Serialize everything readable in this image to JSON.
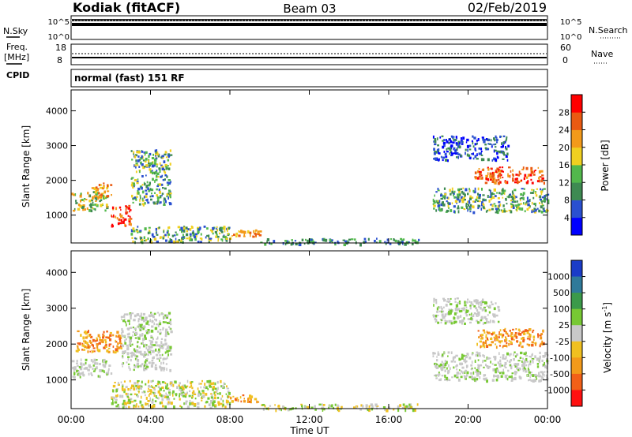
{
  "header": {
    "station": "Kodiak (fitACF)",
    "beam": "Beam 03",
    "date": "02/Feb/2019"
  },
  "noise_panel": {
    "left_label": "N.Sky",
    "right_label": "N.Search",
    "left_ticks": [
      "10^5",
      "10^0"
    ],
    "right_ticks": [
      "10^5",
      "10^0"
    ]
  },
  "freq_panel": {
    "left_label_1": "Freq.",
    "left_label_2": "[MHz]",
    "right_label": "Nave",
    "left_ticks": [
      "18",
      "8"
    ],
    "right_ticks": [
      "60",
      "0"
    ]
  },
  "cpid": {
    "label": "CPID",
    "value": "normal (fast) 151 RF"
  },
  "x_axis": {
    "label": "Time UT",
    "ticks": [
      "00:00",
      "04:00",
      "08:00",
      "12:00",
      "16:00",
      "20:00",
      "00:00"
    ]
  },
  "power_colorbar": {
    "label": "Power [dB]",
    "ticks": [
      "4",
      "8",
      "12",
      "16",
      "20",
      "24",
      "28"
    ],
    "colors": [
      "#0000ff",
      "#2a50d0",
      "#3e8a52",
      "#52b84c",
      "#f0d020",
      "#f39a1a",
      "#ea5a12",
      "#ff0000"
    ]
  },
  "velocity_colorbar": {
    "label": "Velocity [m s^-1]",
    "ticks": [
      "1000",
      "500",
      "100",
      "25",
      "-25",
      "-100",
      "-500",
      "-1000"
    ],
    "colors": [
      "#1a3cc8",
      "#2f7a9a",
      "#3b9a4a",
      "#77c833",
      "#c8c8c8",
      "#f0c020",
      "#f39a1a",
      "#f26018",
      "#ff1010"
    ]
  },
  "chart_data": [
    {
      "type": "heatmap",
      "name": "power",
      "ylabel": "Slant Range [km]",
      "xlabel": "Time UT",
      "xlim": [
        0,
        24
      ],
      "ylim": [
        200,
        4600
      ],
      "yticks": [
        "1000",
        "2000",
        "3000",
        "4000"
      ],
      "ytick_values": [
        1000,
        2000,
        3000,
        4000
      ],
      "features": [
        {
          "t0": 0.0,
          "t1": 1.8,
          "r0": 1150,
          "r1": 1700,
          "level": "green-yellow"
        },
        {
          "t0": 1.0,
          "t1": 2.0,
          "r0": 1500,
          "r1": 1950,
          "level": "orange"
        },
        {
          "t0": 2.0,
          "t1": 3.0,
          "r0": 700,
          "r1": 1300,
          "level": "red"
        },
        {
          "t0": 3.0,
          "t1": 5.0,
          "r0": 1300,
          "r1": 2900,
          "level": "green"
        },
        {
          "t0": 3.0,
          "t1": 8.0,
          "r0": 250,
          "r1": 700,
          "level": "green"
        },
        {
          "t0": 8.0,
          "t1": 9.5,
          "r0": 400,
          "r1": 600,
          "level": "orange"
        },
        {
          "t0": 9.5,
          "t1": 17.5,
          "r0": 180,
          "r1": 350,
          "level": "blue-green"
        },
        {
          "t0": 18.2,
          "t1": 24.0,
          "r0": 1100,
          "r1": 1800,
          "level": "green"
        },
        {
          "t0": 20.3,
          "t1": 23.8,
          "r0": 1950,
          "r1": 2400,
          "level": "orange-red"
        },
        {
          "t0": 18.2,
          "t1": 22.0,
          "r0": 2600,
          "r1": 3300,
          "level": "blue"
        }
      ]
    },
    {
      "type": "heatmap",
      "name": "velocity",
      "ylabel": "Slant Range [km]",
      "xlabel": "Time UT",
      "xlim": [
        0,
        24
      ],
      "ylim": [
        200,
        4600
      ],
      "yticks": [
        "1000",
        "2000",
        "3000",
        "4000"
      ],
      "ytick_values": [
        1000,
        2000,
        3000,
        4000
      ],
      "features": [
        {
          "t0": 0.0,
          "t1": 2.0,
          "r0": 1100,
          "r1": 1600,
          "level": "grey"
        },
        {
          "t0": 0.2,
          "t1": 2.5,
          "r0": 1800,
          "r1": 2400,
          "level": "orange"
        },
        {
          "t0": 2.5,
          "t1": 5.0,
          "r0": 1300,
          "r1": 2900,
          "level": "grey"
        },
        {
          "t0": 2.0,
          "t1": 8.0,
          "r0": 250,
          "r1": 1000,
          "level": "yellow-green"
        },
        {
          "t0": 7.8,
          "t1": 9.5,
          "r0": 400,
          "r1": 600,
          "level": "orange"
        },
        {
          "t0": 9.5,
          "t1": 17.5,
          "r0": 180,
          "r1": 350,
          "level": "yellow-green"
        },
        {
          "t0": 18.2,
          "t1": 24.0,
          "r0": 1000,
          "r1": 1800,
          "level": "grey"
        },
        {
          "t0": 20.3,
          "t1": 23.8,
          "r0": 1950,
          "r1": 2450,
          "level": "orange"
        },
        {
          "t0": 18.2,
          "t1": 21.5,
          "r0": 2600,
          "r1": 3300,
          "level": "grey"
        }
      ]
    }
  ]
}
